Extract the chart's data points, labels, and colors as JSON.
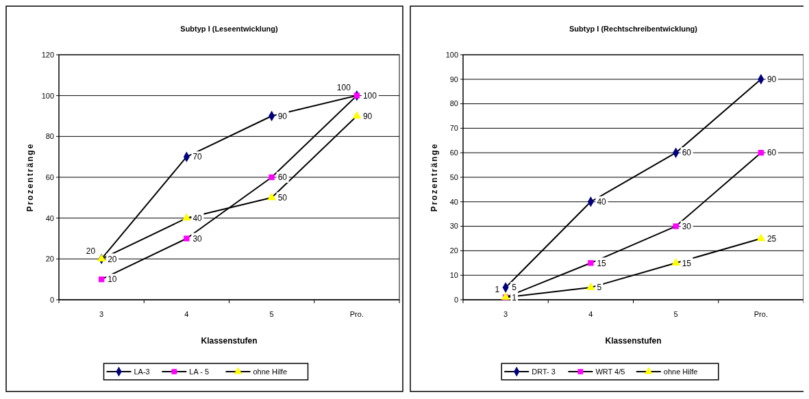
{
  "chart_data": [
    {
      "type": "line",
      "title": "Subtyp I (Leseentwicklung)",
      "xlabel": "Klassenstufen",
      "ylabel": "Prozentränge",
      "categories": [
        "3",
        "4",
        "5",
        "Pro."
      ],
      "ylim": [
        0,
        120
      ],
      "yticks": [
        0,
        20,
        40,
        60,
        80,
        100,
        120
      ],
      "grid": "y",
      "legend": "bottom",
      "data_labels": true,
      "series": [
        {
          "name": "LA-3",
          "color": "#000080",
          "marker": "diamond",
          "values": [
            20,
            70,
            90,
            100
          ]
        },
        {
          "name": "LA - 5",
          "color": "#ff00ff",
          "marker": "square",
          "values": [
            10,
            30,
            60,
            100
          ]
        },
        {
          "name": "ohne Hilfe",
          "color": "#ffff00",
          "marker": "triangle",
          "values": [
            20,
            40,
            50,
            90
          ]
        }
      ]
    },
    {
      "type": "line",
      "title": "Subtyp I (Rechtschreibentwicklung)",
      "xlabel": "Klassenstufen",
      "ylabel": "Prozentränge",
      "categories": [
        "3",
        "4",
        "5",
        "Pro."
      ],
      "ylim": [
        0,
        100
      ],
      "yticks": [
        0,
        10,
        20,
        30,
        40,
        50,
        60,
        70,
        80,
        90,
        100
      ],
      "grid": "y",
      "legend": "bottom",
      "data_labels": true,
      "series": [
        {
          "name": "DRT- 3",
          "color": "#000080",
          "marker": "diamond",
          "values": [
            5,
            40,
            60,
            90
          ]
        },
        {
          "name": "WRT 4/5",
          "color": "#ff00ff",
          "marker": "square",
          "values": [
            1,
            15,
            30,
            60
          ]
        },
        {
          "name": "ohne Hilfe",
          "color": "#ffff00",
          "marker": "triangle",
          "values": [
            1,
            5,
            15,
            25
          ]
        }
      ]
    }
  ]
}
